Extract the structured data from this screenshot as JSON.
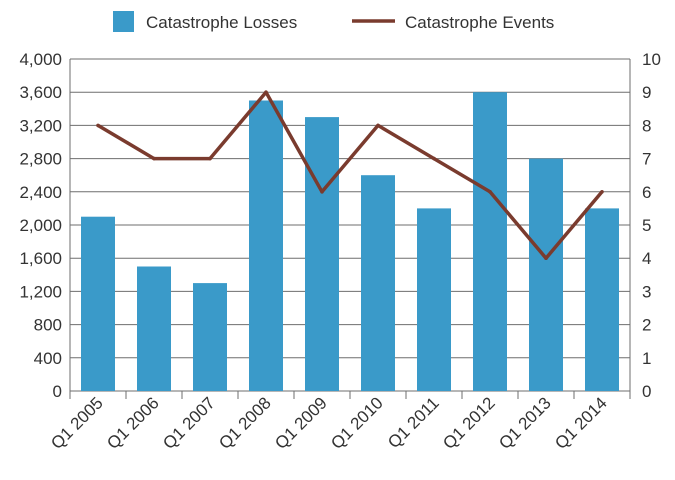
{
  "chart_data": {
    "type": "bar",
    "categories": [
      "Q1 2005",
      "Q1 2006",
      "Q1 2007",
      "Q1 2008",
      "Q1 2009",
      "Q1 2010",
      "Q1 2011",
      "Q1 2012",
      "Q1 2013",
      "Q1 2014"
    ],
    "series": [
      {
        "name": "Catastrophe Losses",
        "type": "bar",
        "axis": "left",
        "color": "#3a9ac9",
        "values": [
          2100,
          1500,
          1300,
          3500,
          3300,
          2600,
          2200,
          3600,
          2800,
          2200
        ]
      },
      {
        "name": "Catastrophe Events",
        "type": "line",
        "axis": "right",
        "color": "#7a3b2e",
        "values": [
          8,
          7,
          7,
          9,
          6,
          8,
          7,
          6,
          4,
          6
        ]
      }
    ],
    "y_left": {
      "ylim": [
        0,
        4000
      ],
      "ticks": [
        "0",
        "400",
        "800",
        "1,200",
        "1,600",
        "2,000",
        "2,400",
        "2,800",
        "3,200",
        "3,600",
        "4,000"
      ]
    },
    "y_right": {
      "ylim": [
        0,
        10
      ],
      "ticks": [
        "0",
        "1",
        "2",
        "3",
        "4",
        "5",
        "6",
        "7",
        "8",
        "9",
        "10"
      ]
    },
    "legend_position": "top-center",
    "grid": "horizontal"
  }
}
